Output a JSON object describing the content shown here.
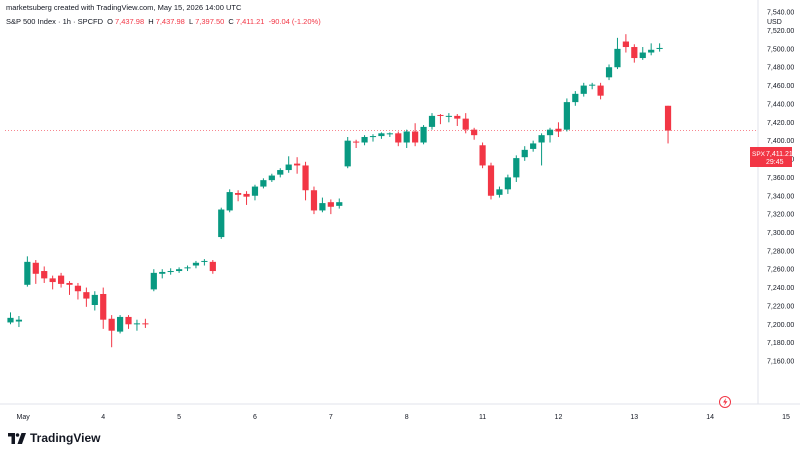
{
  "header": {
    "author_line": "marketsuberg created with TradingView.com, May 15, 2026 14:00 UTC"
  },
  "legend": {
    "symbol": "S&P 500 Index · 1h · SPCFD",
    "open_key": "O",
    "open": "7,437.98",
    "high_key": "H",
    "high": "7,437.98",
    "low_key": "L",
    "low": "7,397.50",
    "close_key": "C",
    "close": "7,411.21",
    "change": "-90.04 (-1.20%)"
  },
  "currency": "USD",
  "price_tag": {
    "symbol": "SPX",
    "price": "7,411.21",
    "countdown": "29:45"
  },
  "brand": {
    "name": "TradingView"
  },
  "colors": {
    "up": "#089981",
    "down": "#f23645",
    "text": "#131722",
    "axis_text": "#131722",
    "price_line": "#f23645"
  },
  "chart_data": {
    "type": "candlestick",
    "title": "S&P 500 Index · 1h · SPCFD",
    "ylim": [
      7140,
      7540
    ],
    "y_ticks": [
      7160,
      7180,
      7200,
      7220,
      7240,
      7260,
      7280,
      7300,
      7320,
      7340,
      7360,
      7380,
      7400,
      7420,
      7440,
      7460,
      7480,
      7500,
      7520,
      7540
    ],
    "y_tick_labels": [
      "7,160.00",
      "7,180.00",
      "7,200.00",
      "7,220.00",
      "7,240.00",
      "7,260.00",
      "7,280.00",
      "7,300.00",
      "7,320.00",
      "7,340.00",
      "7,360.00",
      "7,380.00",
      "7,400.00",
      "7,420.00",
      "7,440.00",
      "7,460.00",
      "7,480.00",
      "7,500.00",
      "7,520.00",
      "7,540.00"
    ],
    "x_labels": [
      {
        "bar": 1.5,
        "label": "May"
      },
      {
        "bar": 11,
        "label": "4"
      },
      {
        "bar": 20,
        "label": "5"
      },
      {
        "bar": 29,
        "label": "6"
      },
      {
        "bar": 38,
        "label": "7"
      },
      {
        "bar": 47,
        "label": "8"
      },
      {
        "bar": 56,
        "label": "11"
      },
      {
        "bar": 65,
        "label": "12"
      },
      {
        "bar": 74,
        "label": "13"
      },
      {
        "bar": 83,
        "label": "14"
      },
      {
        "bar": 92,
        "label": "15"
      }
    ],
    "last_price": 7411.21,
    "candles": [
      [
        0,
        7202,
        7207,
        7200,
        7213
      ],
      [
        1,
        7203,
        7205,
        7197,
        7209
      ],
      [
        2,
        7243,
        7268,
        7241,
        7274
      ],
      [
        3,
        7267,
        7255,
        7244,
        7270
      ],
      [
        4,
        7258,
        7250,
        7245,
        7263
      ],
      [
        5,
        7250,
        7246,
        7238,
        7253
      ],
      [
        6,
        7253,
        7244,
        7240,
        7256
      ],
      [
        7,
        7245,
        7243,
        7232,
        7247
      ],
      [
        8,
        7242,
        7236,
        7227,
        7245
      ],
      [
        9,
        7235,
        7228,
        7219,
        7240
      ],
      [
        10,
        7221,
        7232,
        7215,
        7236
      ],
      [
        11,
        7233,
        7205,
        7195,
        7240
      ],
      [
        12,
        7206,
        7193,
        7175,
        7210
      ],
      [
        13,
        7192,
        7208,
        7190,
        7210
      ],
      [
        14,
        7208,
        7200,
        7195,
        7210
      ],
      [
        15,
        7200,
        7201,
        7193,
        7205
      ],
      [
        16,
        7201,
        7200,
        7196,
        7206
      ],
      [
        17,
        7238,
        7256,
        7236,
        7260
      ],
      [
        18,
        7255,
        7257,
        7250,
        7260
      ],
      [
        19,
        7257,
        7258,
        7254,
        7261
      ],
      [
        20,
        7258,
        7260,
        7256,
        7262
      ],
      [
        21,
        7262,
        7262,
        7258,
        7264
      ],
      [
        22,
        7264,
        7267,
        7261,
        7269
      ],
      [
        23,
        7268,
        7269,
        7264,
        7271
      ],
      [
        24,
        7268,
        7258,
        7255,
        7270
      ],
      [
        25,
        7295,
        7325,
        7293,
        7327
      ],
      [
        26,
        7324,
        7344,
        7322,
        7347
      ],
      [
        27,
        7343,
        7341,
        7334,
        7346
      ],
      [
        28,
        7342,
        7339,
        7330,
        7345
      ],
      [
        29,
        7340,
        7350,
        7335,
        7352
      ],
      [
        30,
        7350,
        7357,
        7348,
        7359
      ],
      [
        31,
        7357,
        7362,
        7355,
        7364
      ],
      [
        32,
        7363,
        7368,
        7360,
        7370
      ],
      [
        33,
        7368,
        7374,
        7365,
        7383
      ],
      [
        34,
        7375,
        7373,
        7364,
        7382
      ],
      [
        35,
        7373,
        7346,
        7335,
        7377
      ],
      [
        36,
        7346,
        7324,
        7320,
        7350
      ],
      [
        37,
        7324,
        7332,
        7322,
        7338
      ],
      [
        38,
        7333,
        7328,
        7320,
        7336
      ],
      [
        39,
        7329,
        7333,
        7326,
        7337
      ],
      [
        40,
        7372,
        7400,
        7370,
        7404
      ],
      [
        41,
        7399,
        7398,
        7392,
        7401
      ],
      [
        42,
        7398,
        7404,
        7395,
        7406
      ],
      [
        43,
        7404,
        7405,
        7399,
        7407
      ],
      [
        44,
        7405,
        7408,
        7402,
        7409
      ],
      [
        45,
        7408,
        7408,
        7404,
        7409
      ],
      [
        46,
        7408,
        7398,
        7394,
        7410
      ],
      [
        47,
        7398,
        7410,
        7392,
        7412
      ],
      [
        48,
        7410,
        7398,
        7394,
        7419
      ],
      [
        49,
        7398,
        7415,
        7396,
        7417
      ],
      [
        50,
        7415,
        7427,
        7412,
        7430
      ],
      [
        51,
        7428,
        7427,
        7418,
        7429
      ],
      [
        52,
        7427,
        7427,
        7420,
        7430
      ],
      [
        53,
        7427,
        7424,
        7416,
        7429
      ],
      [
        54,
        7424,
        7412,
        7408,
        7430
      ],
      [
        55,
        7412,
        7406,
        7401,
        7414
      ],
      [
        56,
        7395,
        7373,
        7370,
        7398
      ],
      [
        57,
        7373,
        7340,
        7336,
        7376
      ],
      [
        58,
        7341,
        7347,
        7338,
        7350
      ],
      [
        59,
        7347,
        7360,
        7342,
        7363
      ],
      [
        60,
        7360,
        7381,
        7355,
        7384
      ],
      [
        61,
        7382,
        7390,
        7378,
        7394
      ],
      [
        62,
        7391,
        7397,
        7388,
        7400
      ],
      [
        63,
        7398,
        7406,
        7373,
        7408
      ],
      [
        64,
        7406,
        7412,
        7398,
        7414
      ],
      [
        65,
        7413,
        7410,
        7404,
        7420
      ],
      [
        66,
        7412,
        7442,
        7410,
        7446
      ],
      [
        67,
        7442,
        7451,
        7438,
        7454
      ],
      [
        68,
        7451,
        7460,
        7448,
        7463
      ],
      [
        69,
        7460,
        7461,
        7456,
        7463
      ],
      [
        70,
        7460,
        7449,
        7445,
        7463
      ],
      [
        71,
        7469,
        7480,
        7466,
        7483
      ],
      [
        72,
        7480,
        7500,
        7478,
        7512
      ],
      [
        73,
        7508,
        7502,
        7496,
        7516
      ],
      [
        74,
        7502,
        7490,
        7485,
        7505
      ],
      [
        75,
        7490,
        7496,
        7488,
        7502
      ],
      [
        76,
        7496,
        7499,
        7493,
        7506
      ],
      [
        77,
        7500,
        7501,
        7497,
        7506
      ],
      [
        78,
        7438,
        7411,
        7397,
        7438
      ]
    ]
  }
}
